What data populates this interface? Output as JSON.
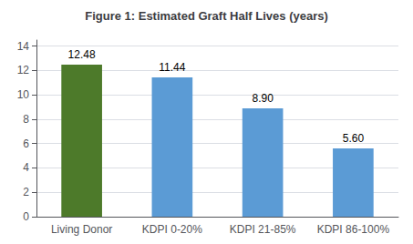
{
  "chart_data": {
    "type": "bar",
    "title": "Figure 1: Estimated Graft Half Lives (years)",
    "categories": [
      "Living Donor",
      "KDPI 0-20%",
      "KDPI 21-85%",
      "KDPI 86-100%"
    ],
    "values": [
      12.48,
      11.44,
      8.9,
      5.6
    ],
    "value_labels": [
      "12.48",
      "11.44",
      "8.90",
      "5.60"
    ],
    "colors": [
      "#4d7a2a",
      "#5b9bd5",
      "#5b9bd5",
      "#5b9bd5"
    ],
    "ylim": [
      0,
      14.5
    ],
    "yticks": [
      0,
      2,
      4,
      6,
      8,
      10,
      12,
      14
    ],
    "grid": true,
    "data_labels": true
  }
}
